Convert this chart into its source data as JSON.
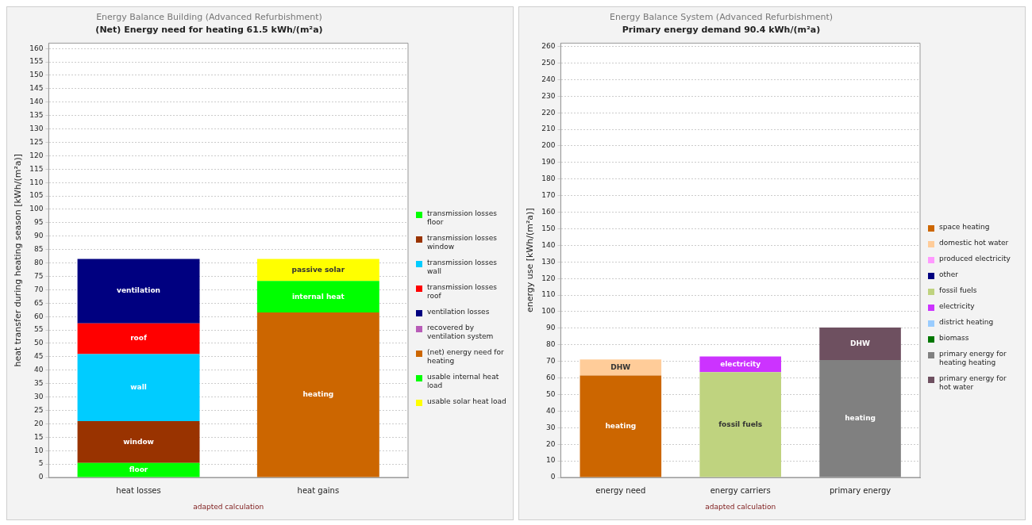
{
  "chart_data": [
    {
      "type": "bar",
      "title": "Energy Balance Building (Advanced Refurbishment)",
      "subtitle": "(Net) Energy need for heating 61.5 kWh/(m²a)",
      "ylabel": "heat transfer during heating season [kWh/(m²a)]",
      "categories": [
        "heat losses",
        "heat gains"
      ],
      "stacked": true,
      "ylim": [
        0,
        162
      ],
      "yticks": [
        0,
        5,
        10,
        15,
        20,
        25,
        30,
        35,
        40,
        45,
        50,
        55,
        60,
        65,
        70,
        75,
        80,
        85,
        90,
        95,
        100,
        105,
        110,
        115,
        120,
        125,
        130,
        135,
        140,
        145,
        150,
        155,
        160
      ],
      "grid": "y",
      "legend": "right",
      "annotations": [
        "adapted calculation"
      ],
      "series": [
        {
          "name": "transmission losses floor",
          "color": "#00ff00",
          "values": [
            5.4,
            null
          ],
          "value_labels": [
            "floor",
            null
          ]
        },
        {
          "name": "transmission losses window",
          "color": "#993300",
          "values": [
            15.6,
            null
          ],
          "value_labels": [
            "window",
            null
          ]
        },
        {
          "name": "transmission losses wall",
          "color": "#00ccff",
          "values": [
            25,
            null
          ],
          "value_labels": [
            "wall",
            null
          ]
        },
        {
          "name": "transmission losses roof",
          "color": "#ff0000",
          "values": [
            11.5,
            null
          ],
          "value_labels": [
            "roof",
            null
          ]
        },
        {
          "name": "ventilation losses",
          "color": "#000080",
          "values": [
            24,
            null
          ],
          "value_labels": [
            "ventilation",
            null
          ]
        },
        {
          "name": "recovered by ventilation system",
          "color": "#b85cb8",
          "values": [
            null,
            null
          ]
        },
        {
          "name": "(net) energy need for heating",
          "color": "#cc6600",
          "values": [
            null,
            61.5
          ],
          "value_labels": [
            null,
            "heating"
          ]
        },
        {
          "name": "usable internal heat load",
          "color": "#00ff00",
          "values": [
            null,
            11.8
          ],
          "value_labels": [
            null,
            "internal heat"
          ]
        },
        {
          "name": "usable solar heat load",
          "color": "#ffff00",
          "values": [
            null,
            8.2
          ],
          "value_labels": [
            null,
            "passive solar"
          ]
        }
      ]
    },
    {
      "type": "bar",
      "title": "Energy Balance System (Advanced Refurbishment)",
      "subtitle": "Primary energy demand 90.4 kWh/(m²a)",
      "ylabel": "energy use [kWh/(m²a)]",
      "categories": [
        "energy need",
        "energy carriers",
        "primary energy"
      ],
      "stacked": true,
      "ylim": [
        0,
        262
      ],
      "yticks": [
        0,
        10,
        20,
        30,
        40,
        50,
        60,
        70,
        80,
        90,
        100,
        110,
        120,
        130,
        140,
        150,
        160,
        170,
        180,
        190,
        200,
        210,
        220,
        230,
        240,
        250,
        260
      ],
      "grid": "y",
      "legend": "right",
      "annotations": [
        "adapted calculation"
      ],
      "series": [
        {
          "name": "space heating",
          "color": "#cc6600",
          "values": [
            61.5,
            null,
            null
          ],
          "value_labels": [
            "heating",
            null,
            null
          ]
        },
        {
          "name": "domestic hot water",
          "color": "#ffcc99",
          "values": [
            9.7,
            null,
            null
          ],
          "value_labels": [
            "DHW",
            null,
            null
          ]
        },
        {
          "name": "produced electricity",
          "color": "#ff99ff",
          "values": [
            null,
            null,
            null
          ]
        },
        {
          "name": "other",
          "color": "#000080",
          "values": [
            null,
            null,
            null
          ]
        },
        {
          "name": "fossil fuels",
          "color": "#bfd37f",
          "values": [
            null,
            63.5,
            null
          ],
          "value_labels": [
            null,
            "fossil fuels",
            null
          ]
        },
        {
          "name": "electricity",
          "color": "#cc33ff",
          "values": [
            null,
            9.5,
            null
          ],
          "value_labels": [
            null,
            "electricity",
            null
          ]
        },
        {
          "name": "district heating",
          "color": "#99ccff",
          "values": [
            null,
            null,
            null
          ]
        },
        {
          "name": "biomass",
          "color": "#007700",
          "values": [
            null,
            null,
            null
          ]
        },
        {
          "name": "primary energy for heating heating",
          "color": "#808080",
          "values": [
            null,
            null,
            70.8
          ],
          "value_labels": [
            null,
            null,
            "heating"
          ]
        },
        {
          "name": "primary energy for hot water",
          "color": "#6e5060",
          "values": [
            null,
            null,
            19.6
          ],
          "value_labels": [
            null,
            null,
            "DHW"
          ]
        }
      ]
    }
  ]
}
